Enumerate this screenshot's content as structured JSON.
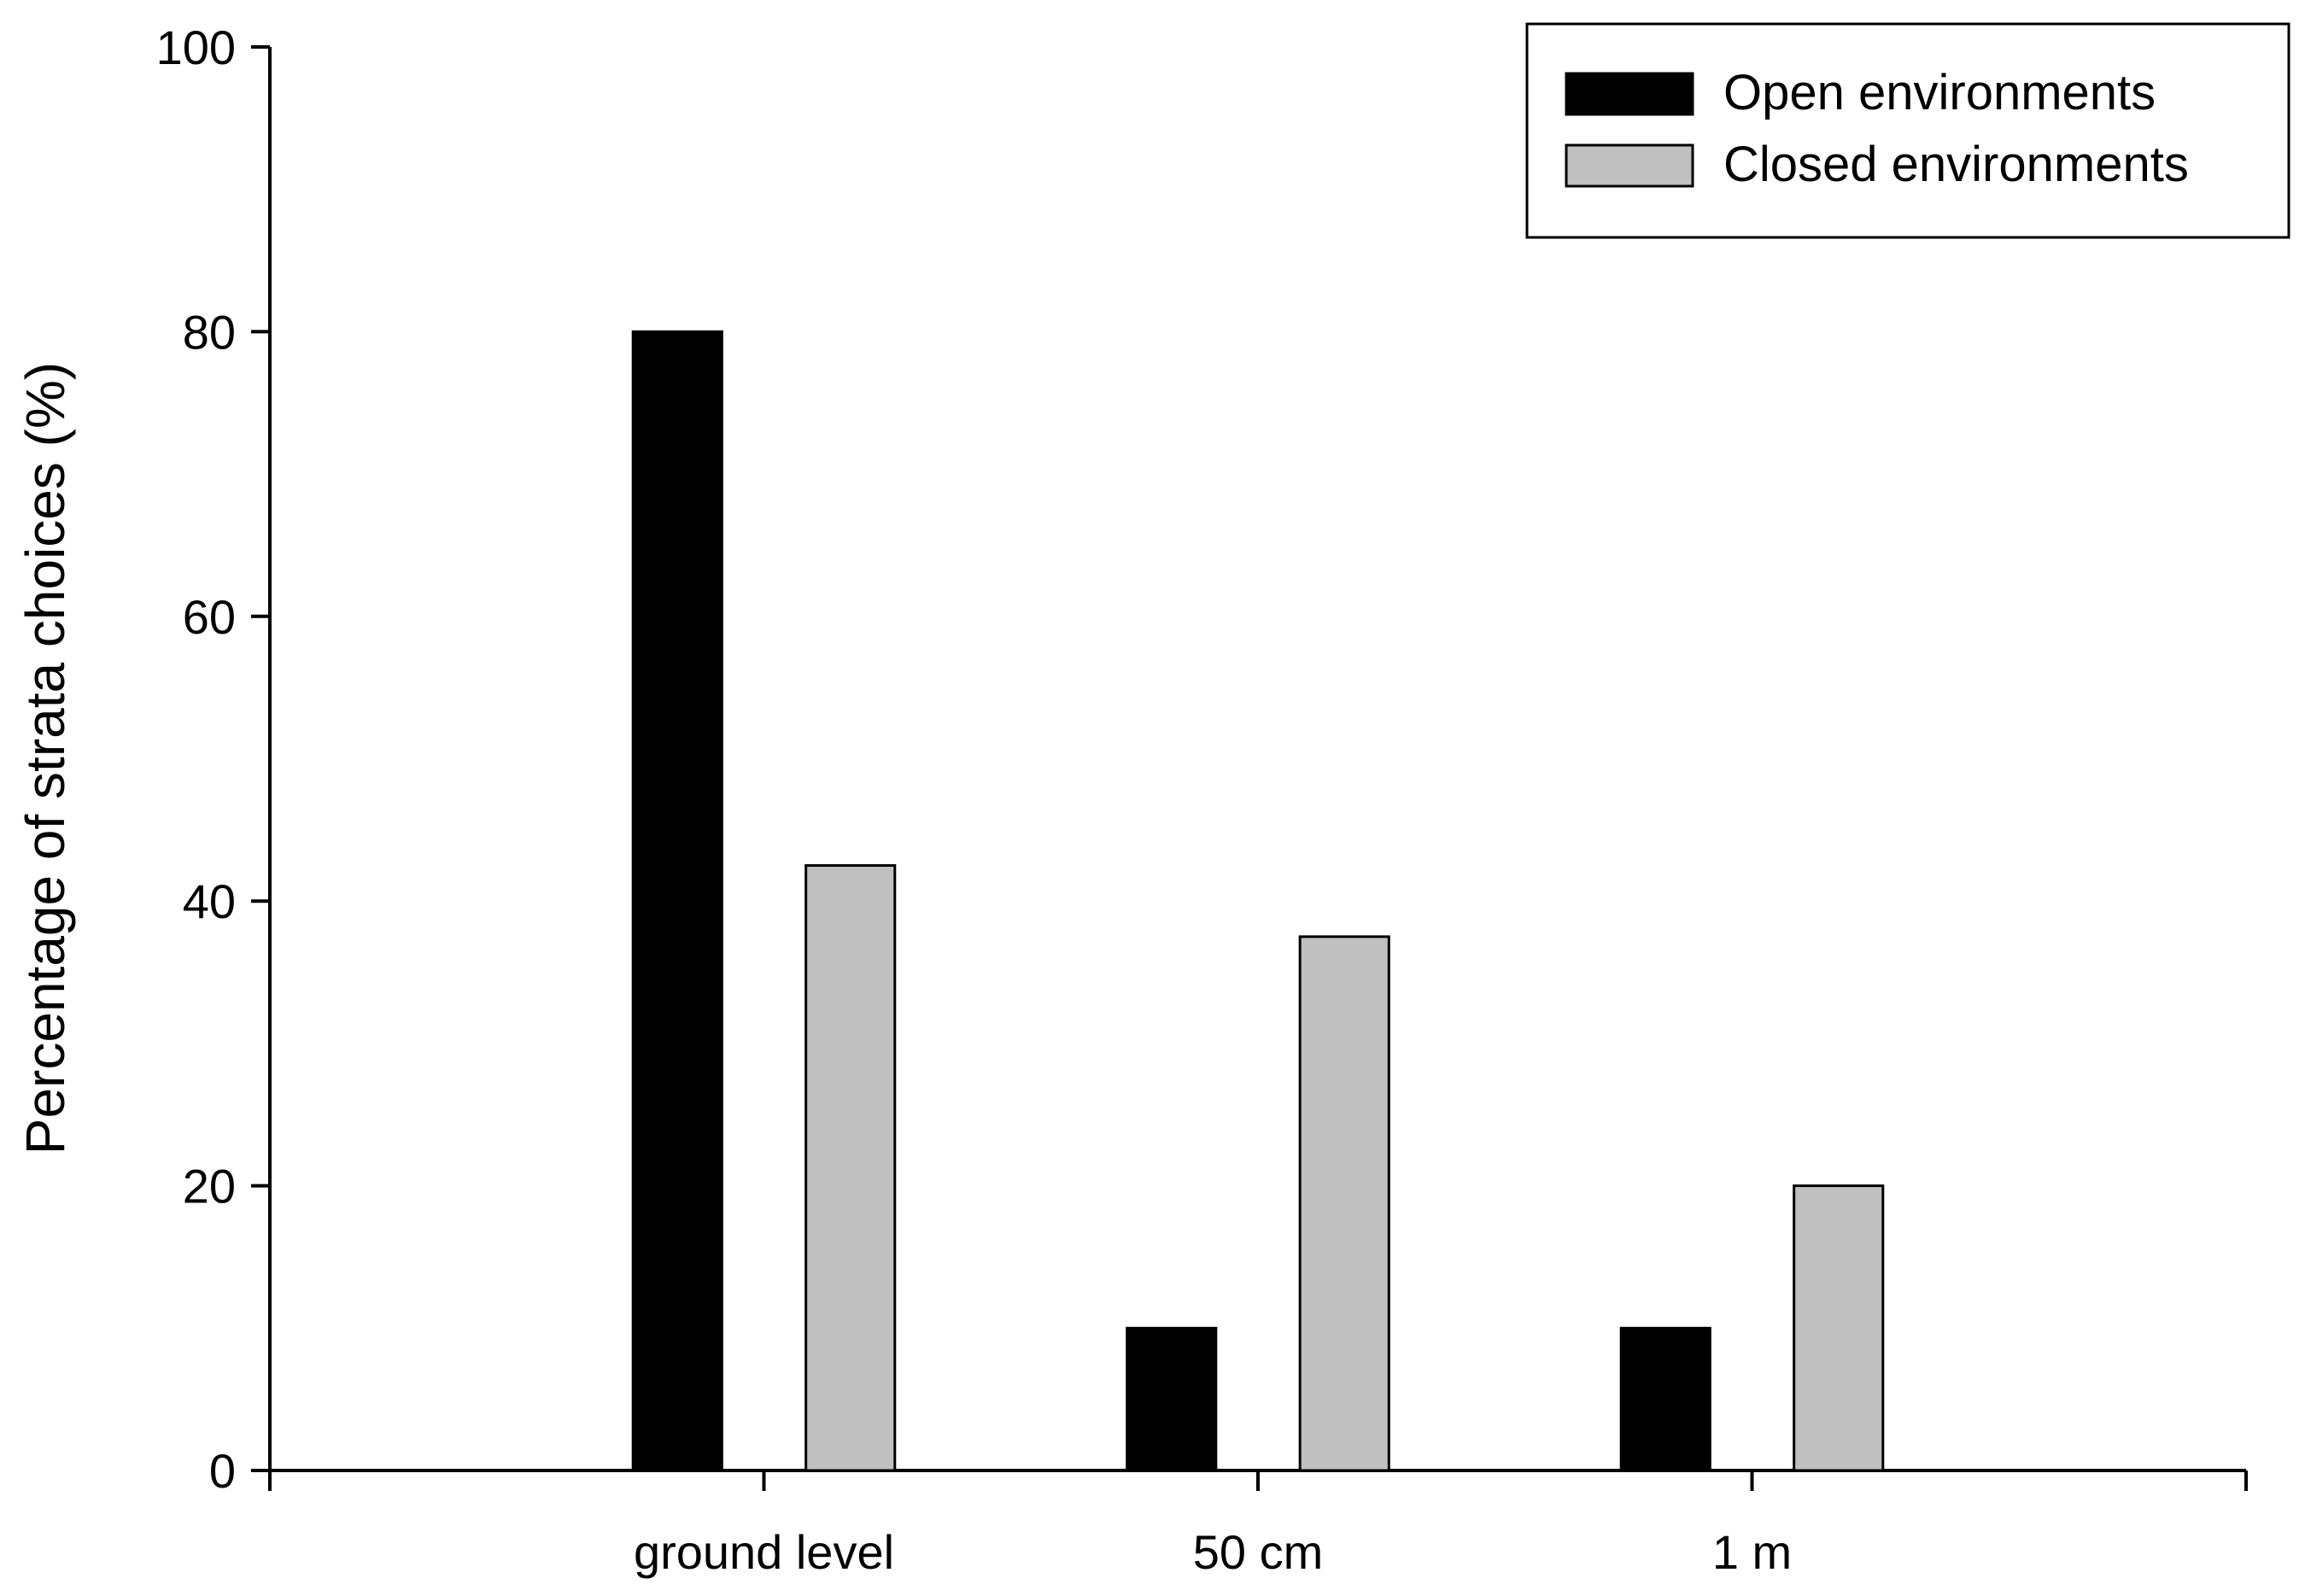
{
  "chart_data": {
    "type": "bar",
    "ylabel": "Percentage of strata choices (%)",
    "xlabel": "",
    "ylim": [
      0,
      100
    ],
    "yticks": [
      0,
      20,
      40,
      60,
      80,
      100
    ],
    "categories": [
      "ground level",
      "50 cm",
      "1 m"
    ],
    "series": [
      {
        "name": "Open environments",
        "values": [
          80,
          10,
          10
        ],
        "color": "#000000"
      },
      {
        "name": "Closed environments",
        "values": [
          42.5,
          37.5,
          20
        ],
        "color": "#c0c0c0"
      }
    ],
    "legend": {
      "position": "top-right"
    },
    "grid": false
  }
}
